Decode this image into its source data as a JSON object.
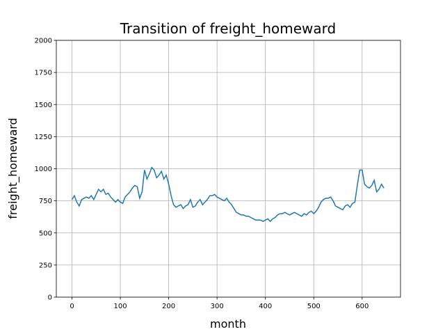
{
  "chart_data": {
    "type": "line",
    "title": "Transition of freight_homeward",
    "x_label": "month",
    "y_label": "freight_homeward",
    "x": [
      0,
      5,
      10,
      15,
      20,
      25,
      30,
      35,
      40,
      45,
      50,
      55,
      60,
      65,
      70,
      75,
      80,
      85,
      90,
      95,
      100,
      105,
      110,
      115,
      120,
      125,
      130,
      135,
      140,
      145,
      150,
      155,
      160,
      165,
      170,
      175,
      180,
      185,
      190,
      195,
      200,
      205,
      210,
      215,
      220,
      225,
      230,
      235,
      240,
      245,
      250,
      255,
      260,
      265,
      270,
      275,
      280,
      285,
      290,
      295,
      300,
      305,
      310,
      315,
      320,
      325,
      330,
      335,
      340,
      345,
      350,
      355,
      360,
      365,
      370,
      375,
      380,
      385,
      390,
      395,
      400,
      405,
      410,
      415,
      420,
      425,
      430,
      435,
      440,
      445,
      450,
      455,
      460,
      465,
      470,
      475,
      480,
      485,
      490,
      495,
      500,
      505,
      510,
      515,
      520,
      525,
      530,
      535,
      540,
      545,
      550,
      555,
      560,
      565,
      570,
      575,
      580,
      585,
      590,
      595,
      600,
      605,
      610,
      615,
      620,
      625,
      630,
      635,
      640,
      645
    ],
    "series": [
      {
        "name": "freight_homeward",
        "color": "#1f77b4",
        "values": [
          760,
          790,
          740,
          710,
          760,
          770,
          780,
          770,
          790,
          760,
          800,
          840,
          820,
          840,
          800,
          810,
          780,
          760,
          740,
          760,
          740,
          730,
          780,
          800,
          820,
          850,
          870,
          860,
          770,
          820,
          990,
          920,
          960,
          1010,
          990,
          930,
          950,
          980,
          920,
          950,
          880,
          790,
          720,
          700,
          710,
          720,
          690,
          710,
          720,
          760,
          700,
          710,
          740,
          760,
          720,
          740,
          760,
          790,
          790,
          800,
          780,
          770,
          760,
          750,
          770,
          740,
          720,
          690,
          660,
          650,
          640,
          640,
          630,
          630,
          620,
          610,
          600,
          600,
          600,
          590,
          600,
          610,
          590,
          610,
          620,
          640,
          650,
          650,
          660,
          650,
          640,
          650,
          660,
          650,
          640,
          630,
          650,
          640,
          660,
          670,
          650,
          670,
          700,
          740,
          760,
          770,
          770,
          780,
          750,
          710,
          700,
          690,
          680,
          710,
          720,
          700,
          730,
          740,
          870,
          990,
          990,
          880,
          860,
          850,
          870,
          910,
          820,
          840,
          880,
          850
        ]
      }
    ],
    "xlim": [
      -32.35,
      679.35
    ],
    "ylim": [
      0,
      2000
    ],
    "xticks": [
      0,
      100,
      200,
      300,
      400,
      500,
      600
    ],
    "yticks": [
      0,
      250,
      500,
      750,
      1000,
      1250,
      1500,
      1750,
      2000
    ],
    "grid": true
  }
}
